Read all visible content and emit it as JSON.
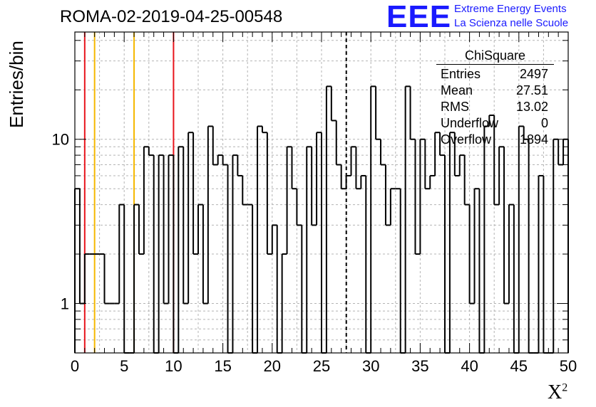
{
  "header": {
    "title": "ROMA-02-2019-04-25-00548",
    "logo_text": "EEE",
    "logo_line1": "Extreme Energy Events",
    "logo_line2": "La Scienza nelle Scuole"
  },
  "stats_box": {
    "title": "ChiSquare",
    "rows": [
      {
        "label": "Entries",
        "value": "2497"
      },
      {
        "label": "Mean",
        "value": "27.51"
      },
      {
        "label": "RMS",
        "value": "13.02"
      },
      {
        "label": "Underflow",
        "value": "0"
      },
      {
        "label": "Overflow",
        "value": "1894"
      }
    ]
  },
  "axes": {
    "ylabel": "Entries/bin",
    "xlabel_base": "X",
    "xlabel_sup": "2"
  },
  "chart_data": {
    "type": "bar",
    "style": "step-histogram",
    "xlim": [
      0,
      50
    ],
    "ylim": [
      0.5,
      45
    ],
    "yscale": "log",
    "bin_width": 0.5,
    "grid": true,
    "xticks": [
      0,
      5,
      10,
      15,
      20,
      25,
      30,
      35,
      40,
      45,
      50
    ],
    "yticks": [
      1,
      10
    ],
    "values": [
      5,
      1,
      2,
      2,
      2,
      2,
      1,
      1,
      1,
      4,
      0,
      0,
      4,
      2,
      9,
      8,
      0,
      8,
      1,
      8,
      0,
      9,
      1,
      11,
      2,
      4,
      1,
      12,
      7,
      8,
      7,
      0,
      8,
      6,
      4,
      4,
      0,
      12,
      11,
      2,
      3,
      0,
      2,
      9,
      5,
      3,
      0,
      9,
      3,
      11,
      0,
      21,
      13,
      7,
      5,
      6,
      9,
      5,
      6,
      0,
      21,
      10,
      7,
      3,
      5,
      5,
      0,
      21,
      10,
      2,
      10,
      5,
      6,
      11,
      8,
      0,
      11,
      6,
      8,
      4,
      1,
      5,
      0,
      12,
      14,
      4,
      9,
      1,
      4,
      0,
      12,
      10,
      0,
      0,
      6,
      0,
      0,
      10,
      7,
      10
    ],
    "vlines": [
      {
        "x": 1,
        "color": "#e8141c",
        "style": "solid"
      },
      {
        "x": 2,
        "color": "#f5b800",
        "style": "solid"
      },
      {
        "x": 6,
        "color": "#f5b800",
        "style": "solid"
      },
      {
        "x": 10,
        "color": "#e8141c",
        "style": "solid"
      },
      {
        "x": 27.51,
        "color": "#000000",
        "style": "dashed"
      }
    ]
  }
}
